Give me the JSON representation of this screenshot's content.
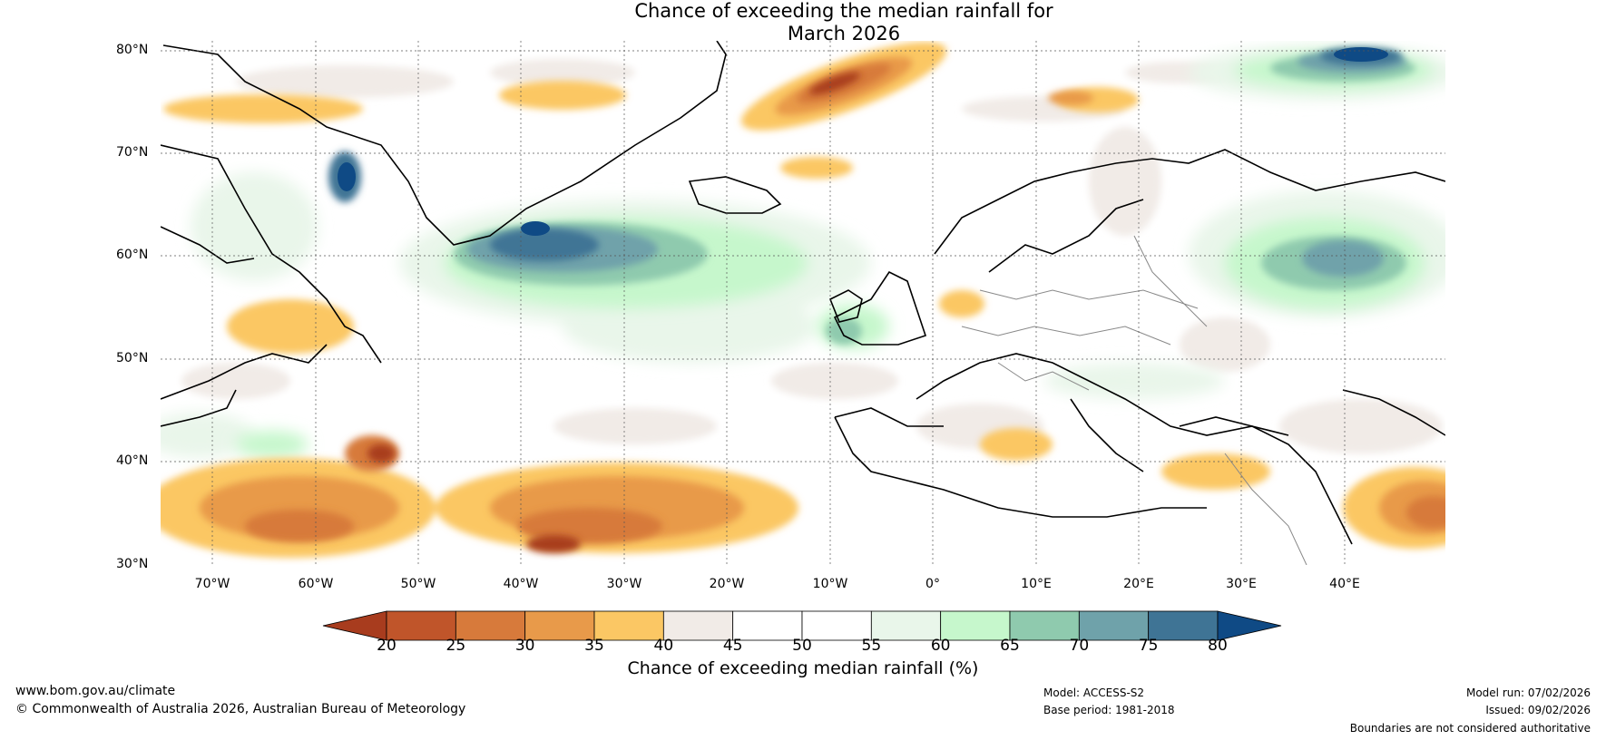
{
  "title": {
    "line1": "Chance of exceeding the median rainfall for",
    "line2": "March 2026"
  },
  "map": {
    "latitude_labels": [
      "80°N",
      "70°N",
      "60°N",
      "50°N",
      "40°N",
      "30°N"
    ],
    "longitude_labels": [
      "70°W",
      "60°W",
      "50°W",
      "40°W",
      "30°W",
      "20°W",
      "10°W",
      "0°",
      "10°E",
      "20°E",
      "30°E",
      "40°E"
    ],
    "regions_drier": [
      "Northern Atlantic near 30-40°N",
      "Svalbard approach",
      "Eastern Mediterranean"
    ],
    "regions_wetter": [
      "Labrador Sea / Greenland coast",
      "North Atlantic near 60°N",
      "Barents Sea",
      "Western Russia"
    ]
  },
  "colorbar": {
    "label": "Chance of exceeding median rainfall (%)",
    "ticks": [
      "20",
      "25",
      "30",
      "35",
      "40",
      "45",
      "50",
      "55",
      "60",
      "65",
      "70",
      "75",
      "80"
    ],
    "colors": [
      "#a83c1e",
      "#c0552a",
      "#d77a3b",
      "#e89a4a",
      "#fbc764",
      "#f1ebe7",
      "#ffffff",
      "#ffffff",
      "#e9f6ea",
      "#c6f7cc",
      "#8fcaae",
      "#6fa2aa",
      "#3f7495",
      "#0f4a85"
    ]
  },
  "footer": {
    "website": "www.bom.gov.au/climate",
    "copyright": "© Commonwealth of Australia 2026, Australian Bureau of Meteorology",
    "model": "Model: ACCESS-S2",
    "base_period": "Base period: 1981-2018",
    "model_run": "Model run: 07/02/2026",
    "issued": "Issued: 09/02/2026",
    "disclaimer": "Boundaries are not considered authoritative"
  }
}
